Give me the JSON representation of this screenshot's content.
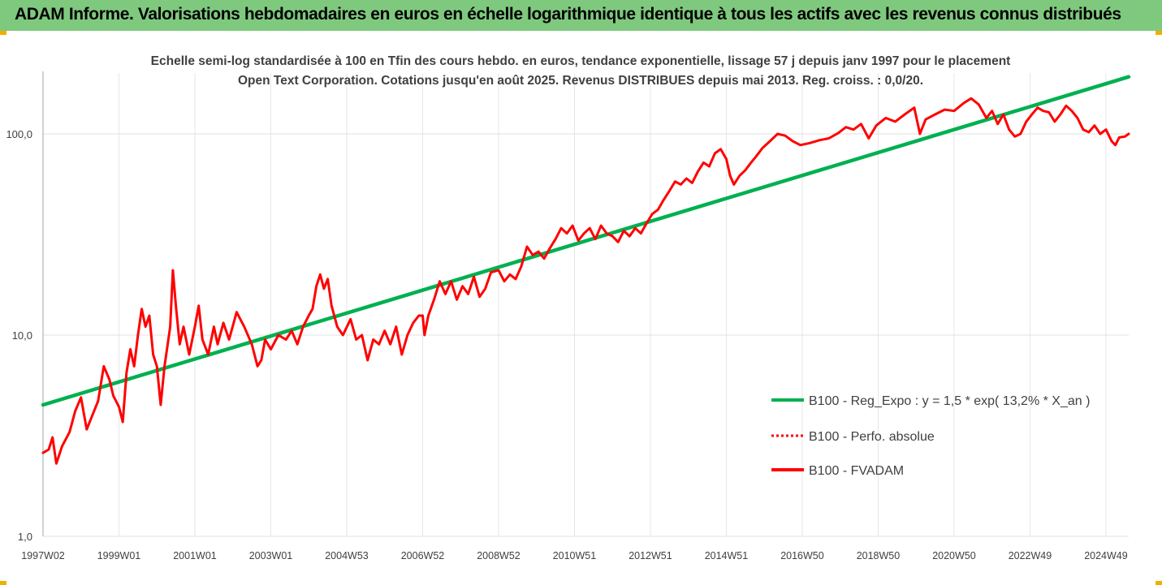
{
  "header": {
    "title": "ADAM Informe. Valorisations hebdomadaires en euros en échelle logarithmique identique à tous les actifs avec les revenus connus distribués"
  },
  "chart_data": {
    "type": "line",
    "title": "Echelle semi-log standardisée à 100 en Tfin des cours hebdo. en euros, tendance exponentielle, lissage 57 j depuis janv 1997 pour le placement Open Text Corporation. Cotations jusqu'en août 2025. Revenus DISTRIBUES depuis mai 2013. Reg. croiss. : 0,0/20.",
    "y_scale": "log",
    "ylim": [
      1,
      200
    ],
    "xlim": [
      1997.0,
      2025.6
    ],
    "grid": true,
    "legend_position": "right",
    "y_ticks": [
      {
        "value": 1,
        "label": "1,0"
      },
      {
        "value": 10,
        "label": "10,0"
      },
      {
        "value": 100,
        "label": "100,0"
      }
    ],
    "x_ticks": [
      {
        "label": "1997W02",
        "x": 1997.0
      },
      {
        "label": "1999W01",
        "x": 1999.0
      },
      {
        "label": "2001W01",
        "x": 2001.0
      },
      {
        "label": "2003W01",
        "x": 2003.0
      },
      {
        "label": "2004W53",
        "x": 2005.0
      },
      {
        "label": "2006W52",
        "x": 2007.0
      },
      {
        "label": "2008W52",
        "x": 2009.0
      },
      {
        "label": "2010W51",
        "x": 2011.0
      },
      {
        "label": "2012W51",
        "x": 2013.0
      },
      {
        "label": "2014W51",
        "x": 2015.0
      },
      {
        "label": "2016W50",
        "x": 2017.0
      },
      {
        "label": "2018W50",
        "x": 2019.0
      },
      {
        "label": "2020W50",
        "x": 2021.0
      },
      {
        "label": "2022W49",
        "x": 2023.0
      },
      {
        "label": "2024W49",
        "x": 2025.0
      }
    ],
    "series": [
      {
        "name": "B100 - Reg_Expo : y = 1,5 * exp( 13,2% *  X_an )",
        "color": "#00b050",
        "style": "solid",
        "points": [
          [
            1997.0,
            4.5
          ],
          [
            2025.6,
            192
          ]
        ]
      },
      {
        "name": "B100 - Perfo. absolue",
        "color": "#ff0000",
        "style": "dotted",
        "points": []
      },
      {
        "name": "B100 - FVADAM",
        "color": "#ff0000",
        "style": "solid",
        "points": [
          [
            1997.0,
            2.6
          ],
          [
            1997.15,
            2.7
          ],
          [
            1997.25,
            3.1
          ],
          [
            1997.35,
            2.3
          ],
          [
            1997.5,
            2.8
          ],
          [
            1997.7,
            3.3
          ],
          [
            1997.85,
            4.2
          ],
          [
            1998.0,
            4.9
          ],
          [
            1998.15,
            3.4
          ],
          [
            1998.3,
            4.0
          ],
          [
            1998.45,
            4.7
          ],
          [
            1998.6,
            7.0
          ],
          [
            1998.75,
            6.0
          ],
          [
            1998.85,
            5.0
          ],
          [
            1999.0,
            4.4
          ],
          [
            1999.1,
            3.7
          ],
          [
            1999.2,
            6.5
          ],
          [
            1999.3,
            8.5
          ],
          [
            1999.4,
            7.0
          ],
          [
            1999.5,
            10.0
          ],
          [
            1999.6,
            13.5
          ],
          [
            1999.7,
            11.0
          ],
          [
            1999.8,
            12.5
          ],
          [
            1999.9,
            8.0
          ],
          [
            2000.0,
            7.0
          ],
          [
            2000.1,
            4.5
          ],
          [
            2000.2,
            7.0
          ],
          [
            2000.35,
            11.0
          ],
          [
            2000.42,
            21.0
          ],
          [
            2000.5,
            14.0
          ],
          [
            2000.6,
            9.0
          ],
          [
            2000.7,
            11.0
          ],
          [
            2000.85,
            8.0
          ],
          [
            2001.0,
            11.0
          ],
          [
            2001.1,
            14.0
          ],
          [
            2001.2,
            9.5
          ],
          [
            2001.35,
            8.0
          ],
          [
            2001.5,
            11.0
          ],
          [
            2001.6,
            9.0
          ],
          [
            2001.75,
            11.5
          ],
          [
            2001.9,
            9.5
          ],
          [
            2002.1,
            13.0
          ],
          [
            2002.3,
            11.0
          ],
          [
            2002.5,
            9.0
          ],
          [
            2002.65,
            7.0
          ],
          [
            2002.75,
            7.5
          ],
          [
            2002.85,
            9.5
          ],
          [
            2003.0,
            8.5
          ],
          [
            2003.2,
            10.0
          ],
          [
            2003.4,
            9.5
          ],
          [
            2003.55,
            10.5
          ],
          [
            2003.7,
            9.0
          ],
          [
            2003.85,
            11.0
          ],
          [
            2004.0,
            12.5
          ],
          [
            2004.1,
            13.5
          ],
          [
            2004.2,
            17.5
          ],
          [
            2004.3,
            20.0
          ],
          [
            2004.4,
            17.0
          ],
          [
            2004.5,
            19.0
          ],
          [
            2004.6,
            14.0
          ],
          [
            2004.75,
            11.0
          ],
          [
            2004.9,
            10.0
          ],
          [
            2005.1,
            12.0
          ],
          [
            2005.25,
            9.5
          ],
          [
            2005.4,
            10.0
          ],
          [
            2005.55,
            7.5
          ],
          [
            2005.7,
            9.5
          ],
          [
            2005.85,
            9.0
          ],
          [
            2006.0,
            10.5
          ],
          [
            2006.15,
            9.0
          ],
          [
            2006.3,
            11.0
          ],
          [
            2006.45,
            8.0
          ],
          [
            2006.6,
            10.0
          ],
          [
            2006.75,
            11.5
          ],
          [
            2006.9,
            12.5
          ],
          [
            2007.0,
            12.5
          ],
          [
            2007.05,
            10.0
          ],
          [
            2007.15,
            12.5
          ],
          [
            2007.3,
            15.0
          ],
          [
            2007.45,
            18.5
          ],
          [
            2007.6,
            16.0
          ],
          [
            2007.75,
            18.5
          ],
          [
            2007.9,
            15.0
          ],
          [
            2008.05,
            17.5
          ],
          [
            2008.2,
            16.0
          ],
          [
            2008.35,
            19.5
          ],
          [
            2008.5,
            15.5
          ],
          [
            2008.65,
            17.0
          ],
          [
            2008.8,
            20.5
          ],
          [
            2009.0,
            21.0
          ],
          [
            2009.15,
            18.5
          ],
          [
            2009.3,
            20.0
          ],
          [
            2009.45,
            19.0
          ],
          [
            2009.6,
            22.0
          ],
          [
            2009.75,
            27.5
          ],
          [
            2009.9,
            25.0
          ],
          [
            2010.05,
            26.0
          ],
          [
            2010.2,
            24.0
          ],
          [
            2010.35,
            27.0
          ],
          [
            2010.5,
            30.0
          ],
          [
            2010.65,
            34.0
          ],
          [
            2010.8,
            32.0
          ],
          [
            2010.95,
            35.0
          ],
          [
            2011.1,
            29.5
          ],
          [
            2011.25,
            32.0
          ],
          [
            2011.4,
            34.0
          ],
          [
            2011.55,
            30.0
          ],
          [
            2011.7,
            35.0
          ],
          [
            2011.85,
            32.0
          ],
          [
            2012.0,
            31.0
          ],
          [
            2012.15,
            29.0
          ],
          [
            2012.3,
            33.0
          ],
          [
            2012.45,
            31.0
          ],
          [
            2012.6,
            34.0
          ],
          [
            2012.75,
            32.0
          ],
          [
            2012.9,
            36.0
          ],
          [
            2013.05,
            40.0
          ],
          [
            2013.2,
            42.0
          ],
          [
            2013.35,
            47.0
          ],
          [
            2013.5,
            52.0
          ],
          [
            2013.65,
            58.0
          ],
          [
            2013.8,
            56.0
          ],
          [
            2013.95,
            60.0
          ],
          [
            2014.1,
            57.0
          ],
          [
            2014.25,
            65.0
          ],
          [
            2014.4,
            72.0
          ],
          [
            2014.55,
            69.0
          ],
          [
            2014.7,
            80.0
          ],
          [
            2014.85,
            84.0
          ],
          [
            2015.0,
            75.0
          ],
          [
            2015.1,
            62.0
          ],
          [
            2015.2,
            56.0
          ],
          [
            2015.35,
            62.0
          ],
          [
            2015.5,
            66.0
          ],
          [
            2015.65,
            72.0
          ],
          [
            2015.8,
            78.0
          ],
          [
            2015.95,
            85.0
          ],
          [
            2016.15,
            92.0
          ],
          [
            2016.35,
            100.0
          ],
          [
            2016.55,
            98.0
          ],
          [
            2016.75,
            92.0
          ],
          [
            2016.95,
            88.0
          ],
          [
            2017.2,
            90.0
          ],
          [
            2017.45,
            93.0
          ],
          [
            2017.7,
            95.0
          ],
          [
            2017.95,
            101.0
          ],
          [
            2018.15,
            108.0
          ],
          [
            2018.35,
            105.0
          ],
          [
            2018.55,
            112.0
          ],
          [
            2018.75,
            95.0
          ],
          [
            2018.95,
            110.0
          ],
          [
            2019.2,
            120.0
          ],
          [
            2019.45,
            115.0
          ],
          [
            2019.7,
            125.0
          ],
          [
            2019.95,
            135.0
          ],
          [
            2020.1,
            100.0
          ],
          [
            2020.25,
            118.0
          ],
          [
            2020.5,
            125.0
          ],
          [
            2020.75,
            132.0
          ],
          [
            2021.0,
            130.0
          ],
          [
            2021.25,
            142.0
          ],
          [
            2021.45,
            150.0
          ],
          [
            2021.65,
            140.0
          ],
          [
            2021.85,
            120.0
          ],
          [
            2022.0,
            130.0
          ],
          [
            2022.15,
            112.0
          ],
          [
            2022.3,
            125.0
          ],
          [
            2022.45,
            105.0
          ],
          [
            2022.6,
            97.0
          ],
          [
            2022.75,
            100.0
          ],
          [
            2022.9,
            115.0
          ],
          [
            2023.05,
            125.0
          ],
          [
            2023.2,
            135.0
          ],
          [
            2023.35,
            130.0
          ],
          [
            2023.5,
            128.0
          ],
          [
            2023.65,
            115.0
          ],
          [
            2023.8,
            125.0
          ],
          [
            2023.95,
            138.0
          ],
          [
            2024.1,
            130.0
          ],
          [
            2024.25,
            120.0
          ],
          [
            2024.4,
            105.0
          ],
          [
            2024.55,
            102.0
          ],
          [
            2024.7,
            110.0
          ],
          [
            2024.85,
            100.0
          ],
          [
            2025.0,
            105.0
          ],
          [
            2025.15,
            92.0
          ],
          [
            2025.25,
            88.0
          ],
          [
            2025.35,
            96.0
          ],
          [
            2025.5,
            97.0
          ],
          [
            2025.6,
            100.0
          ]
        ]
      }
    ]
  }
}
